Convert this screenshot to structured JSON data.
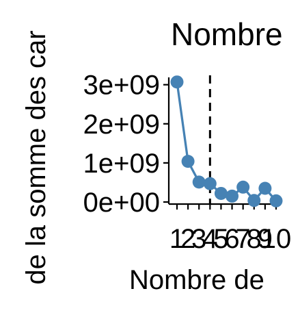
{
  "chart_data": {
    "type": "line",
    "title": "Nombre",
    "xlabel": "Nombre de",
    "ylabel": "de la somme des car",
    "x": [
      1,
      2,
      3,
      4,
      5,
      6,
      7,
      8,
      9,
      10
    ],
    "x_tick_labels": [
      "1",
      "2",
      "3",
      "4",
      "5",
      "6",
      "7",
      "8",
      "9",
      "10"
    ],
    "y_tick_labels": [
      "0e+00",
      "1e+09",
      "2e+09",
      "3e+09"
    ],
    "y_ticks": [
      0,
      1000000000,
      2000000000,
      3000000000
    ],
    "xlim": [
      1,
      10
    ],
    "ylim": [
      0,
      3100000000
    ],
    "series": [
      {
        "values": [
          3070000000,
          1040000000,
          510000000,
          470000000,
          220000000,
          150000000,
          380000000,
          40000000,
          350000000,
          30000000
        ],
        "color": "#4682b4"
      }
    ],
    "vline": {
      "x": 4,
      "style": "dashed",
      "color": "#000000"
    },
    "grid": false,
    "legend": "none"
  }
}
